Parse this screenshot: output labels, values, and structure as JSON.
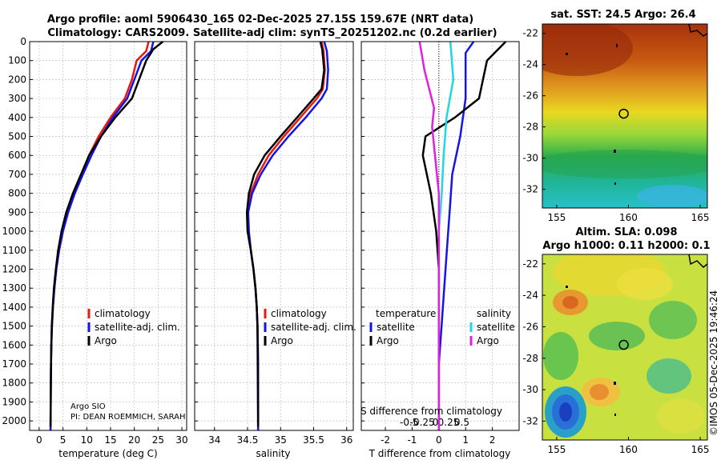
{
  "header": {
    "title_line1": "Argo profile: aoml 5906430_165 02-Dec-2025 27.15S 159.67E (NRT data)",
    "title_line2": "Climatology: CARS2009. Satellite-adj clim: synTS_20251202.nc (0.2d earlier)"
  },
  "colors": {
    "climatology": "#e8180c",
    "satellite_adj": "#1414e6",
    "argo": "#000000",
    "satellite_salinity": "#22d6e0",
    "argo_salinity_diff": "#e020e0"
  },
  "chart_data": [
    {
      "type": "line",
      "name": "temperature-profile",
      "xlabel": "temperature (deg C)",
      "ylabel": "pressure (dbar)",
      "xlim": [
        -2,
        31
      ],
      "ylim": [
        0,
        2050
      ],
      "xticks": [
        "0",
        "5",
        "10",
        "15",
        "20",
        "25",
        "30"
      ],
      "yticks": [
        "0",
        "100",
        "200",
        "300",
        "400",
        "500",
        "600",
        "700",
        "800",
        "900",
        "1000",
        "1100",
        "1200",
        "1300",
        "1400",
        "1500",
        "1600",
        "1700",
        "1800",
        "1900",
        "2000"
      ],
      "legend": [
        "climatology",
        "satellite-adj. clim.",
        "Argo"
      ],
      "legend_position": "lower-right",
      "annotation": [
        "Argo SIO",
        "PI: DEAN ROEMMICH, SARAH"
      ],
      "series": [
        {
          "name": "climatology",
          "x": [
            23.0,
            22.5,
            20.5,
            19.5,
            18.0,
            15.0,
            12.5,
            10.5,
            9.0,
            7.3,
            6.0,
            5.0,
            4.2,
            3.6,
            3.2,
            2.9,
            2.7,
            2.55,
            2.45,
            2.4
          ],
          "y": [
            0,
            50,
            100,
            200,
            300,
            400,
            500,
            600,
            700,
            800,
            900,
            1000,
            1100,
            1200,
            1300,
            1400,
            1500,
            1600,
            1800,
            2050
          ]
        },
        {
          "name": "satellite-adj. clim.",
          "x": [
            24.0,
            23.5,
            21.5,
            20.0,
            18.5,
            15.5,
            13.0,
            11.0,
            9.2,
            7.5,
            6.1,
            5.0,
            4.2,
            3.6,
            3.2,
            2.9,
            2.7,
            2.55,
            2.45,
            2.4
          ],
          "y": [
            0,
            50,
            100,
            200,
            300,
            400,
            500,
            600,
            700,
            800,
            900,
            1000,
            1100,
            1200,
            1300,
            1400,
            1500,
            1600,
            1800,
            2050
          ]
        },
        {
          "name": "Argo",
          "x": [
            26.0,
            24.0,
            22.5,
            21.0,
            19.5,
            16.0,
            13.0,
            10.5,
            8.8,
            7.1,
            5.7,
            4.7,
            4.0,
            3.5,
            3.1,
            2.85,
            2.65,
            2.5,
            2.4
          ],
          "y": [
            0,
            40,
            100,
            200,
            300,
            400,
            500,
            600,
            700,
            800,
            900,
            1000,
            1100,
            1200,
            1300,
            1400,
            1500,
            1700,
            2030
          ]
        }
      ]
    },
    {
      "type": "line",
      "name": "salinity-profile",
      "xlabel": "salinity",
      "ylim": [
        0,
        2050
      ],
      "xlim": [
        33.7,
        36.1
      ],
      "xticks": [
        "34",
        "34.5",
        "35",
        "35.5",
        "36"
      ],
      "series": [
        {
          "name": "climatology",
          "x": [
            35.62,
            35.65,
            35.67,
            35.64,
            35.55,
            35.3,
            35.05,
            34.82,
            34.66,
            34.55,
            34.5,
            34.51,
            34.55,
            34.59,
            34.62,
            34.64,
            34.65,
            34.66,
            34.66
          ],
          "y": [
            0,
            50,
            150,
            250,
            300,
            400,
            500,
            600,
            700,
            800,
            900,
            1000,
            1100,
            1200,
            1300,
            1400,
            1500,
            1700,
            2050
          ]
        },
        {
          "name": "satellite-adj. clim.",
          "x": [
            35.66,
            35.7,
            35.72,
            35.7,
            35.62,
            35.38,
            35.12,
            34.88,
            34.7,
            34.57,
            34.51,
            34.52,
            34.55,
            34.59,
            34.62,
            34.64,
            34.65,
            34.66,
            34.66
          ],
          "y": [
            0,
            50,
            150,
            250,
            300,
            400,
            500,
            600,
            700,
            800,
            900,
            1000,
            1100,
            1200,
            1300,
            1400,
            1500,
            1700,
            2050
          ]
        },
        {
          "name": "Argo",
          "x": [
            35.6,
            35.63,
            35.66,
            35.62,
            35.5,
            35.25,
            35.0,
            34.76,
            34.6,
            34.52,
            34.49,
            34.5,
            34.55,
            34.59,
            34.62,
            34.64,
            34.65,
            34.66
          ],
          "y": [
            0,
            40,
            150,
            250,
            300,
            400,
            500,
            600,
            700,
            800,
            900,
            1000,
            1100,
            1200,
            1300,
            1400,
            1500,
            2030
          ]
        }
      ]
    },
    {
      "type": "line",
      "name": "difference-profile",
      "xlabel": "T difference from climatology",
      "xlabel_top": "S difference from climatology",
      "ylim": [
        0,
        2050
      ],
      "xlim": [
        -2.9,
        3.0
      ],
      "xticks": [
        "-2",
        "-1",
        "0",
        "1",
        "2"
      ],
      "xticks_top": [
        "-0.5",
        "-0.25",
        "0",
        "0.25",
        "0.5"
      ],
      "legend_temperature": [
        "temperature",
        "satellite",
        "Argo"
      ],
      "legend_salinity": [
        "salinity",
        "satellite",
        "Argo"
      ],
      "series": [
        {
          "name": "temperature satellite",
          "x": [
            1.3,
            1.0,
            1.0,
            0.8,
            0.5,
            0.4,
            0.3,
            0.2,
            0.1,
            0.0,
            0.0
          ],
          "y": [
            0,
            60,
            300,
            500,
            700,
            900,
            1100,
            1300,
            1500,
            1700,
            2050
          ]
        },
        {
          "name": "temperature Argo",
          "x": [
            2.5,
            1.8,
            1.5,
            0.6,
            -0.5,
            -0.6,
            -0.3,
            -0.1,
            0.0,
            0.0,
            0.0
          ],
          "y": [
            0,
            100,
            300,
            400,
            500,
            600,
            800,
            1000,
            1200,
            1500,
            2050
          ]
        },
        {
          "name": "salinity satellite",
          "x": [
            0.12,
            0.15,
            0.08,
            0.05,
            0.03,
            0.0,
            0.0
          ],
          "y": [
            0,
            200,
            400,
            600,
            800,
            1000,
            2050
          ]
        },
        {
          "name": "salinity Argo",
          "x": [
            -0.2,
            -0.15,
            -0.05,
            -0.07,
            -0.04,
            0.0,
            0.0
          ],
          "y": [
            0,
            150,
            350,
            450,
            600,
            800,
            2050
          ]
        }
      ]
    },
    {
      "type": "heatmap",
      "name": "sst-map",
      "title": "sat. SST: 24.5 Argo: 26.4",
      "xlim": [
        154,
        165.5
      ],
      "ylim": [
        -33.2,
        -21.4
      ],
      "xticks": [
        "155",
        "160",
        "165"
      ],
      "yticks": [
        "-22",
        "-24",
        "-26",
        "-28",
        "-30",
        "-32"
      ],
      "argo_position": {
        "lon": 159.67,
        "lat": -27.15
      }
    },
    {
      "type": "heatmap",
      "name": "sla-map",
      "title_line1": "Altim. SLA: 0.098",
      "title_line2": "Argo h1000: 0.11 h2000: 0.1",
      "xlim": [
        154,
        165.5
      ],
      "ylim": [
        -33.2,
        -21.4
      ],
      "xticks": [
        "155",
        "160",
        "165"
      ],
      "yticks": [
        "-22",
        "-24",
        "-26",
        "-28",
        "-30",
        "-32"
      ],
      "argo_position": {
        "lon": 159.67,
        "lat": -27.15
      }
    }
  ],
  "footer": {
    "credit": "©IMOS 05-Dec-2025 19:46:24"
  }
}
